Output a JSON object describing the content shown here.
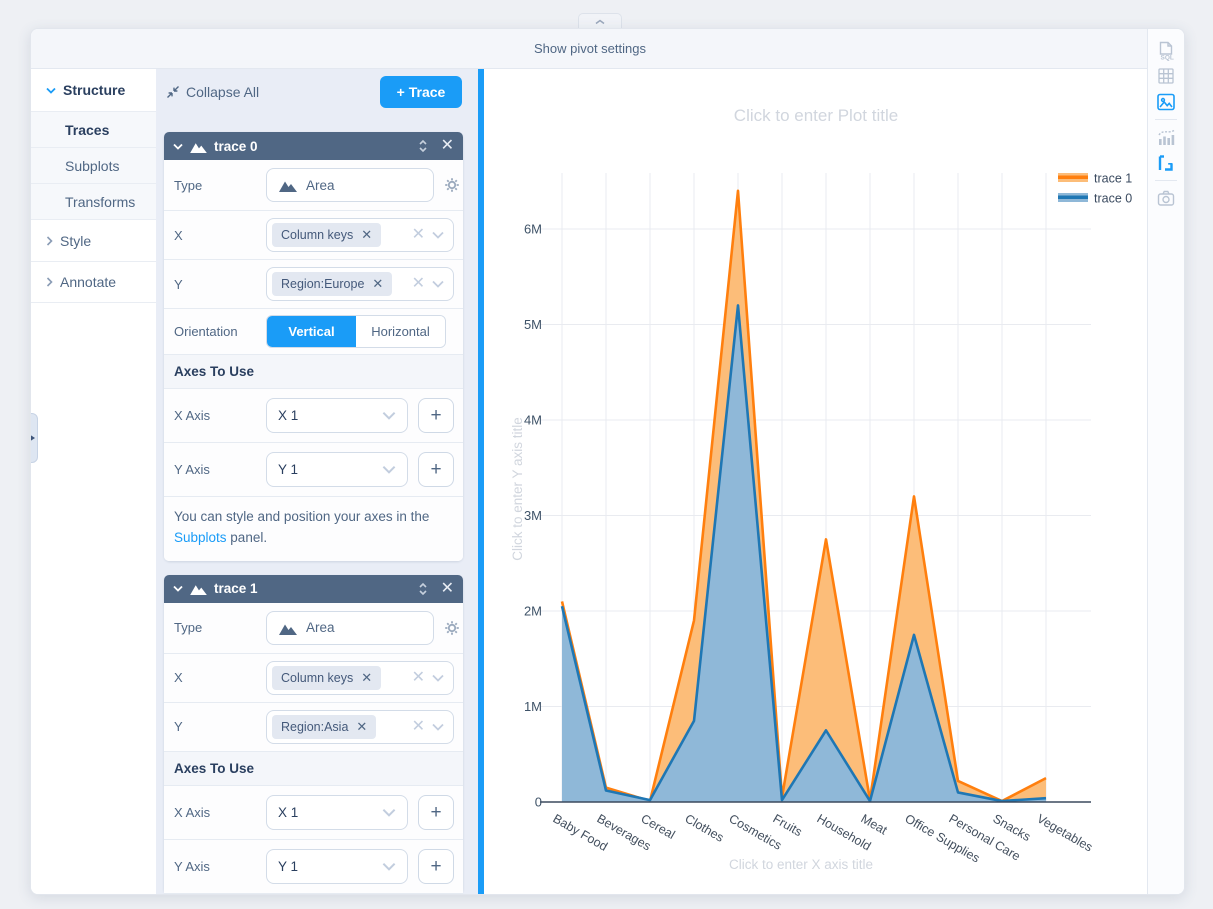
{
  "topbar": {
    "label": "Show pivot settings"
  },
  "sidebar": {
    "structure_label": "Structure",
    "items": [
      "Traces",
      "Subplots",
      "Transforms"
    ],
    "active_item": "Traces",
    "style_label": "Style",
    "annotate_label": "Annotate"
  },
  "panel": {
    "collapse_all_label": "Collapse All",
    "add_trace_label": "+ Trace",
    "traces": [
      {
        "title": "trace 0",
        "type_label": "Type",
        "type_value": "Area",
        "x_label": "X",
        "x_chip": "Column keys",
        "y_label": "Y",
        "y_chip": "Region:Europe",
        "orientation_label": "Orientation",
        "orientation_options": [
          "Vertical",
          "Horizontal"
        ],
        "orientation_selected": "Vertical",
        "axes_section": "Axes To Use",
        "x_axis_label": "X Axis",
        "x_axis_value": "X 1",
        "y_axis_label": "Y Axis",
        "y_axis_value": "Y 1",
        "info_before": "You can style and position your axes in the ",
        "info_link": "Subplots",
        "info_after": " panel."
      },
      {
        "title": "trace 1",
        "type_label": "Type",
        "type_value": "Area",
        "x_label": "X",
        "x_chip": "Column keys",
        "y_label": "Y",
        "y_chip": "Region:Asia",
        "axes_section": "Axes To Use",
        "x_axis_label": "X Axis",
        "x_axis_value": "X 1",
        "y_axis_label": "Y Axis",
        "y_axis_value": "Y 1"
      }
    ]
  },
  "right_toolbar": {
    "icons": [
      {
        "name": "sql",
        "active": false
      },
      {
        "name": "grid",
        "active": false
      },
      {
        "name": "image",
        "active": true
      },
      {
        "name": "chart",
        "active": false
      },
      {
        "name": "pivot",
        "active": true
      },
      {
        "name": "camera",
        "active": false
      }
    ],
    "active_color": "#1a9cf7",
    "inactive_color": "#b9c4d3"
  },
  "chart_data": {
    "type": "area",
    "title": "Click to enter Plot title",
    "xlabel": "Click to enter X axis title",
    "ylabel": "Click to enter Y axis title",
    "grid": true,
    "legend_position": "top-right",
    "categories": [
      "Baby Food",
      "Beverages",
      "Cereal",
      "Clothes",
      "Cosmetics",
      "Fruits",
      "Household",
      "Meat",
      "Office Supplies",
      "Personal Care",
      "Snacks",
      "Vegetables"
    ],
    "ytick_labels": [
      "0",
      "1M",
      "2M",
      "3M",
      "4M",
      "5M",
      "6M"
    ],
    "ytick_values": [
      0,
      1,
      2,
      3,
      4,
      5,
      6
    ],
    "ylim": [
      0,
      6.8
    ],
    "unit": "M",
    "series": [
      {
        "name": "trace 1",
        "field": "Region:Asia",
        "line_color": "#ff7f0e",
        "fill_color": "#fcbd79",
        "values": [
          2.1,
          0.15,
          0.01,
          1.9,
          6.4,
          0.05,
          2.75,
          0.02,
          3.2,
          0.22,
          0.01,
          0.25
        ]
      },
      {
        "name": "trace 0",
        "field": "Region:Europe",
        "line_color": "#1f77b4",
        "fill_color": "#8fb8d8",
        "values": [
          2.05,
          0.12,
          0.02,
          0.85,
          5.2,
          0.02,
          0.75,
          0.01,
          1.75,
          0.1,
          0.01,
          0.04
        ]
      }
    ]
  }
}
